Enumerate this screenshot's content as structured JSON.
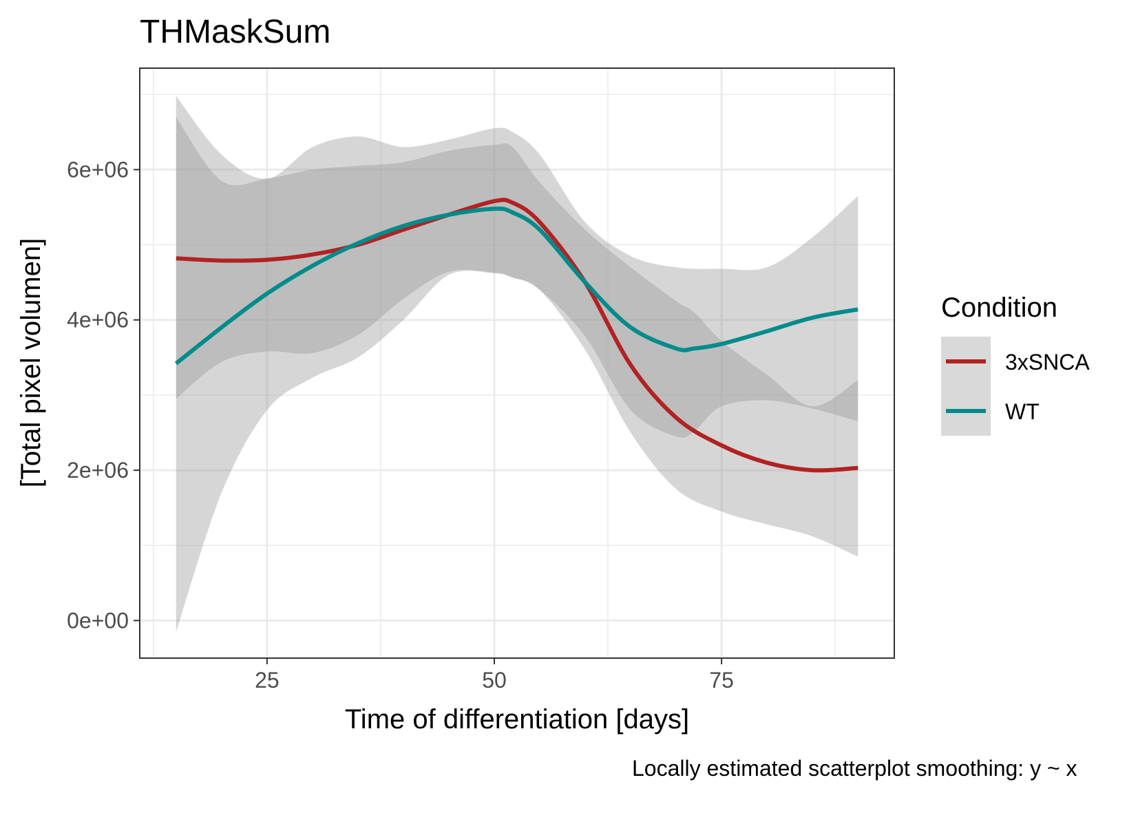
{
  "chart_data": {
    "type": "line",
    "title": "THMaskSum",
    "xlabel": "Time of differentiation [days]",
    "ylabel": "[Total pixel volumen]",
    "xlim": [
      11,
      94
    ],
    "ylim": [
      -500000,
      7350000
    ],
    "x_ticks": [
      25,
      50,
      75
    ],
    "x_tick_labels": [
      "25",
      "50",
      "75"
    ],
    "y_ticks": [
      0,
      2000000,
      4000000,
      6000000
    ],
    "y_tick_labels": [
      "0e+00",
      "2e+06",
      "4e+06",
      "6e+06"
    ],
    "grid": true,
    "caption": "Locally estimated scatterplot smoothing: y ~ x",
    "legend": {
      "title": "Condition",
      "position": "right",
      "entries": [
        "3xSNCA",
        "WT"
      ]
    },
    "series": [
      {
        "name": "3xSNCA",
        "color": "#B22222",
        "x": [
          15,
          20,
          25,
          30,
          35,
          40,
          45,
          50,
          52,
          55,
          60,
          65,
          70,
          75,
          80,
          85,
          90
        ],
        "y": [
          4820000,
          4790000,
          4800000,
          4870000,
          5000000,
          5200000,
          5400000,
          5580000,
          5560000,
          5300000,
          4500000,
          3400000,
          2700000,
          2330000,
          2100000,
          2000000,
          2030000
        ],
        "lower": [
          -150000,
          1700000,
          2800000,
          3230000,
          3500000,
          4000000,
          4600000,
          4620000,
          4560000,
          4400000,
          3600000,
          2500000,
          1750000,
          1450000,
          1280000,
          1120000,
          850000
        ],
        "upper": [
          6980000,
          6200000,
          5880000,
          6300000,
          6440000,
          6300000,
          6400000,
          6550000,
          6500000,
          6200000,
          5300000,
          4850000,
          4700000,
          4680000,
          4700000,
          5100000,
          5650000
        ]
      },
      {
        "name": "WT",
        "color": "#008B8B",
        "x": [
          15,
          20,
          25,
          30,
          35,
          40,
          45,
          50,
          52,
          55,
          60,
          65,
          70,
          72,
          75,
          80,
          85,
          90
        ],
        "y": [
          3420000,
          3900000,
          4350000,
          4720000,
          5020000,
          5250000,
          5400000,
          5480000,
          5430000,
          5200000,
          4500000,
          3900000,
          3620000,
          3620000,
          3680000,
          3850000,
          4030000,
          4140000
        ],
        "lower": [
          2950000,
          3440000,
          3580000,
          3560000,
          3800000,
          4280000,
          4640000,
          4630000,
          4570000,
          4400000,
          3780000,
          2800000,
          2450000,
          2520000,
          2850000,
          2930000,
          2820000,
          2650000
        ],
        "upper": [
          6700000,
          5850000,
          5880000,
          6000000,
          6050000,
          6100000,
          6250000,
          6330000,
          6300000,
          5830000,
          5200000,
          4700000,
          4250000,
          4100000,
          3720000,
          3270000,
          2850000,
          3200000
        ]
      }
    ]
  }
}
